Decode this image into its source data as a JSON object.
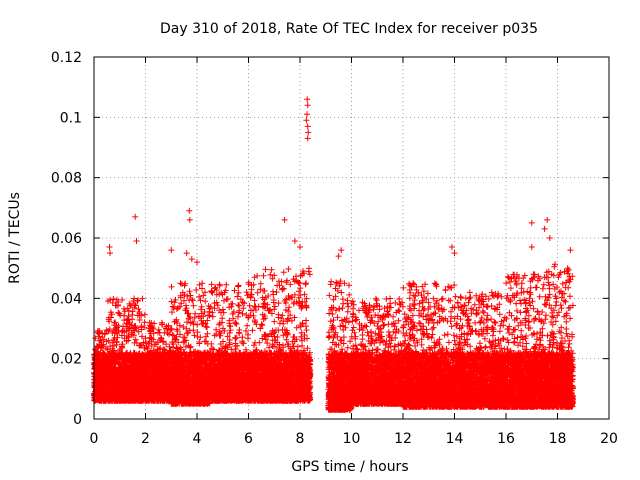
{
  "chart_data": {
    "type": "scatter",
    "title": "Day 310 of 2018, Rate Of TEC Index for receiver p035",
    "xlabel": "GPS time / hours",
    "ylabel": "ROTI / TECUs",
    "xlim": [
      0,
      20
    ],
    "ylim": [
      0,
      0.12
    ],
    "xticks": [
      0,
      2,
      4,
      6,
      8,
      10,
      12,
      14,
      16,
      18,
      20
    ],
    "yticks": [
      0,
      0.02,
      0.04,
      0.06,
      0.08,
      0.1,
      0.12
    ],
    "xtick_labels": [
      "0",
      "2",
      "4",
      "6",
      "8",
      "10",
      "12",
      "14",
      "16",
      "18",
      "20"
    ],
    "ytick_labels": [
      "0",
      "0.02",
      "0.04",
      "0.06",
      "0.08",
      "0.1",
      "0.12"
    ],
    "grid": true,
    "marker": "+",
    "series_color": "#ff0000",
    "data_gap_hours": [
      8.4,
      9.1
    ],
    "outliers": [
      {
        "x": 8.28,
        "y": 0.106
      },
      {
        "x": 8.3,
        "y": 0.104
      },
      {
        "x": 8.27,
        "y": 0.101
      },
      {
        "x": 8.25,
        "y": 0.099
      },
      {
        "x": 8.3,
        "y": 0.097
      },
      {
        "x": 8.32,
        "y": 0.095
      },
      {
        "x": 8.3,
        "y": 0.093
      },
      {
        "x": 1.6,
        "y": 0.067
      },
      {
        "x": 1.65,
        "y": 0.059
      },
      {
        "x": 3.7,
        "y": 0.069
      },
      {
        "x": 3.72,
        "y": 0.066
      },
      {
        "x": 7.4,
        "y": 0.066
      },
      {
        "x": 17.0,
        "y": 0.065
      },
      {
        "x": 17.6,
        "y": 0.066
      },
      {
        "x": 17.5,
        "y": 0.063
      },
      {
        "x": 17.7,
        "y": 0.06
      },
      {
        "x": 0.6,
        "y": 0.057
      },
      {
        "x": 0.62,
        "y": 0.055
      },
      {
        "x": 3.0,
        "y": 0.056
      },
      {
        "x": 3.6,
        "y": 0.055
      },
      {
        "x": 3.8,
        "y": 0.053
      },
      {
        "x": 4.0,
        "y": 0.052
      },
      {
        "x": 9.6,
        "y": 0.056
      },
      {
        "x": 9.5,
        "y": 0.054
      },
      {
        "x": 13.9,
        "y": 0.057
      },
      {
        "x": 14.0,
        "y": 0.055
      },
      {
        "x": 17.0,
        "y": 0.057
      },
      {
        "x": 18.5,
        "y": 0.056
      },
      {
        "x": 7.8,
        "y": 0.059
      },
      {
        "x": 8.0,
        "y": 0.057
      }
    ],
    "envelope": [
      {
        "x_range": [
          0,
          0.5
        ],
        "y_low": 0.006,
        "y_high": 0.03
      },
      {
        "x_range": [
          0.5,
          2.0
        ],
        "y_low": 0.006,
        "y_high": 0.04
      },
      {
        "x_range": [
          2.0,
          3.0
        ],
        "y_low": 0.006,
        "y_high": 0.032
      },
      {
        "x_range": [
          3.0,
          4.5
        ],
        "y_low": 0.005,
        "y_high": 0.045
      },
      {
        "x_range": [
          4.5,
          6.0
        ],
        "y_low": 0.006,
        "y_high": 0.045
      },
      {
        "x_range": [
          6.0,
          7.0
        ],
        "y_low": 0.006,
        "y_high": 0.05
      },
      {
        "x_range": [
          7.0,
          8.4
        ],
        "y_low": 0.006,
        "y_high": 0.05
      },
      {
        "x_range": [
          9.1,
          10.0
        ],
        "y_low": 0.003,
        "y_high": 0.046
      },
      {
        "x_range": [
          10.0,
          12.0
        ],
        "y_low": 0.005,
        "y_high": 0.04
      },
      {
        "x_range": [
          12.0,
          14.0
        ],
        "y_low": 0.004,
        "y_high": 0.045
      },
      {
        "x_range": [
          14.0,
          16.0
        ],
        "y_low": 0.004,
        "y_high": 0.042
      },
      {
        "x_range": [
          16.0,
          17.5
        ],
        "y_low": 0.004,
        "y_high": 0.048
      },
      {
        "x_range": [
          17.5,
          18.6
        ],
        "y_low": 0.004,
        "y_high": 0.052
      }
    ]
  }
}
